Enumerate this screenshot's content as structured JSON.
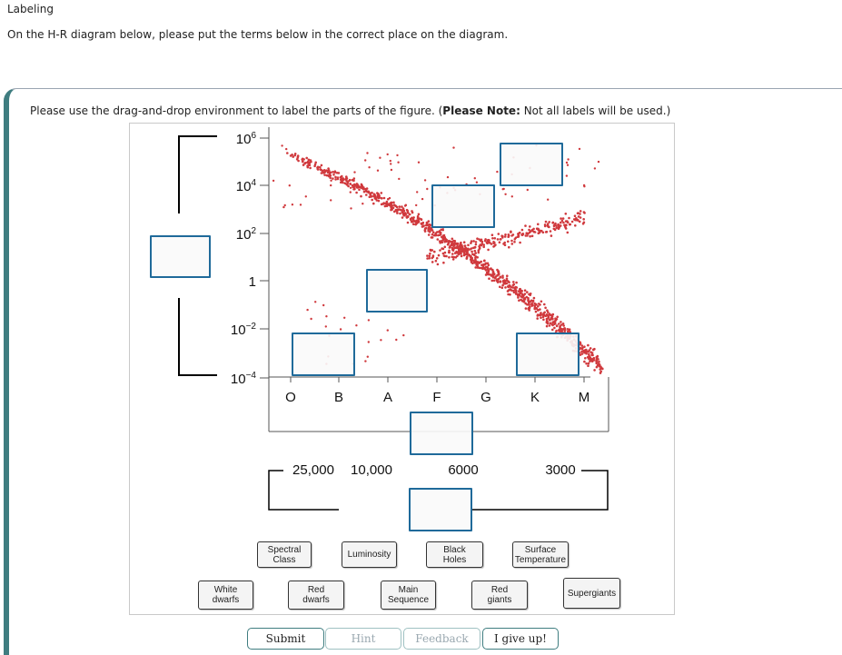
{
  "header": {
    "title": "Labeling",
    "instruction": "On the H-R diagram below, please put the terms below in the correct place on the diagram."
  },
  "panel": {
    "instruction_prefix": "Please use the drag-and-drop environment to label the parts of the figure. (",
    "note_label": "Please Note:",
    "instruction_suffix": " Not all labels will be used.)"
  },
  "diagram": {
    "y_ticks": [
      {
        "base": "10",
        "exp": "6"
      },
      {
        "base": "10",
        "exp": "4"
      },
      {
        "base": "10",
        "exp": "2"
      },
      {
        "base": "1",
        "exp": ""
      },
      {
        "base": "10",
        "exp": "−2"
      },
      {
        "base": "10",
        "exp": "−4"
      }
    ],
    "spectral_classes": [
      "O",
      "B",
      "A",
      "F",
      "G",
      "K",
      "M"
    ],
    "temperatures": [
      "25,000",
      "10,000",
      "6000",
      "3000"
    ],
    "point_color": "#d0393d"
  },
  "labels": {
    "spectral_class": "Spectral\nClass",
    "luminosity": "Luminosity",
    "black_holes": "Black\nHoles",
    "surface_temperature": "Surface\nTemperature",
    "white_dwarfs": "White\ndwarfs",
    "red_dwarfs": "Red\ndwarfs",
    "main_sequence": "Main\nSequence",
    "red_giants": "Red\ngiants",
    "supergiants": "Supergiants"
  },
  "buttons": {
    "submit": "Submit",
    "hint": "Hint",
    "feedback": "Feedback",
    "give_up": "I give up!"
  },
  "colors": {
    "accent": "#3f7d80",
    "drop_zone_border": "#1f6a9a"
  }
}
